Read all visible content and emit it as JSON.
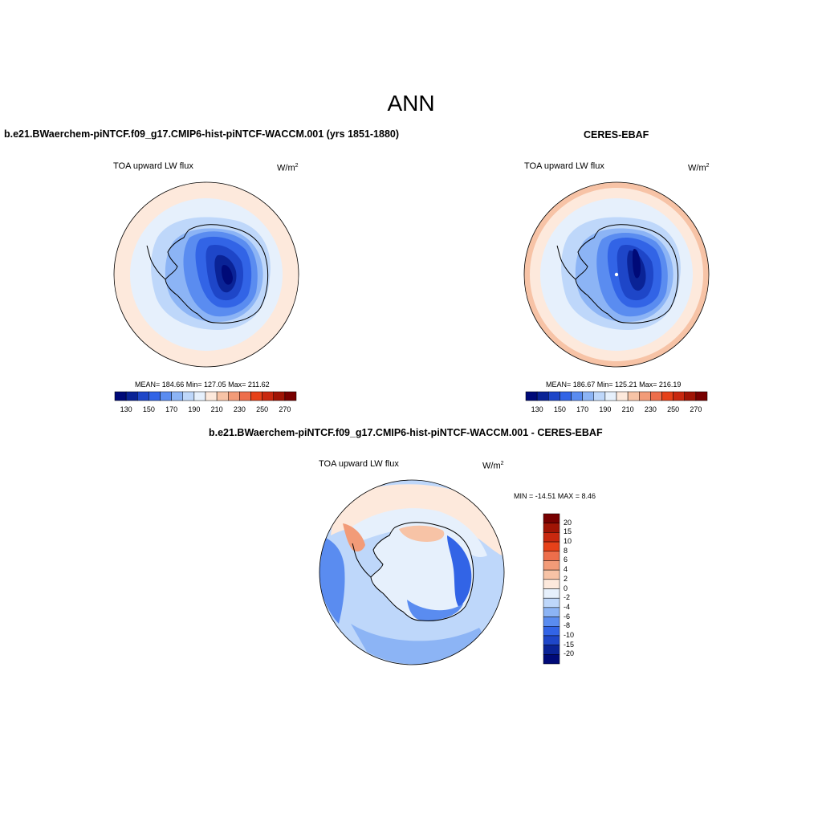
{
  "title": "ANN",
  "panels": {
    "model": {
      "case_title": "b.e21.BWaerchem-piNTCF.f09_g17.CMIP6-hist-piNTCF-WACCM.001 (yrs 1851-1880)",
      "variable": "TOA upward LW flux",
      "units": "W/m",
      "units_exp": "2",
      "stats": "MEAN= 184.66  Min= 127.05  Max= 211.62"
    },
    "obs": {
      "case_title": "CERES-EBAF",
      "variable": "TOA upward LW flux",
      "units": "W/m",
      "units_exp": "2",
      "stats": "MEAN= 186.67  Min= 125.21  Max= 216.19"
    },
    "diff": {
      "case_title": "b.e21.BWaerchem-piNTCF.f09_g17.CMIP6-hist-piNTCF-WACCM.001 - CERES-EBAF",
      "variable": "TOA upward LW flux",
      "units": "W/m",
      "units_exp": "2",
      "stats": "MIN = -14.51 MAX =   8.46"
    }
  },
  "colorbar_abs": {
    "colors": [
      "#000a78",
      "#0a2396",
      "#1e46c8",
      "#3264e6",
      "#5a8cf0",
      "#8cb4f5",
      "#bed7fa",
      "#e6f0fc",
      "#fde9dc",
      "#f7c3a6",
      "#f29b78",
      "#ed6e4b",
      "#e64119",
      "#c8280f",
      "#a01405",
      "#780000"
    ],
    "labels": [
      "130",
      "150",
      "170",
      "190",
      "210",
      "230",
      "250",
      "270"
    ]
  },
  "colorbar_diff": {
    "colors": [
      "#780000",
      "#a01405",
      "#c8280f",
      "#e64119",
      "#ed6e4b",
      "#f29b78",
      "#f7c3a6",
      "#fde9dc",
      "#e6f0fc",
      "#bed7fa",
      "#8cb4f5",
      "#5a8cf0",
      "#3264e6",
      "#1e46c8",
      "#0a2396",
      "#000a78"
    ],
    "labels": [
      "20",
      "15",
      "10",
      "8",
      "6",
      "4",
      "2",
      "0",
      "-2",
      "-4",
      "-6",
      "-8",
      "-10",
      "-15",
      "-20"
    ]
  }
}
